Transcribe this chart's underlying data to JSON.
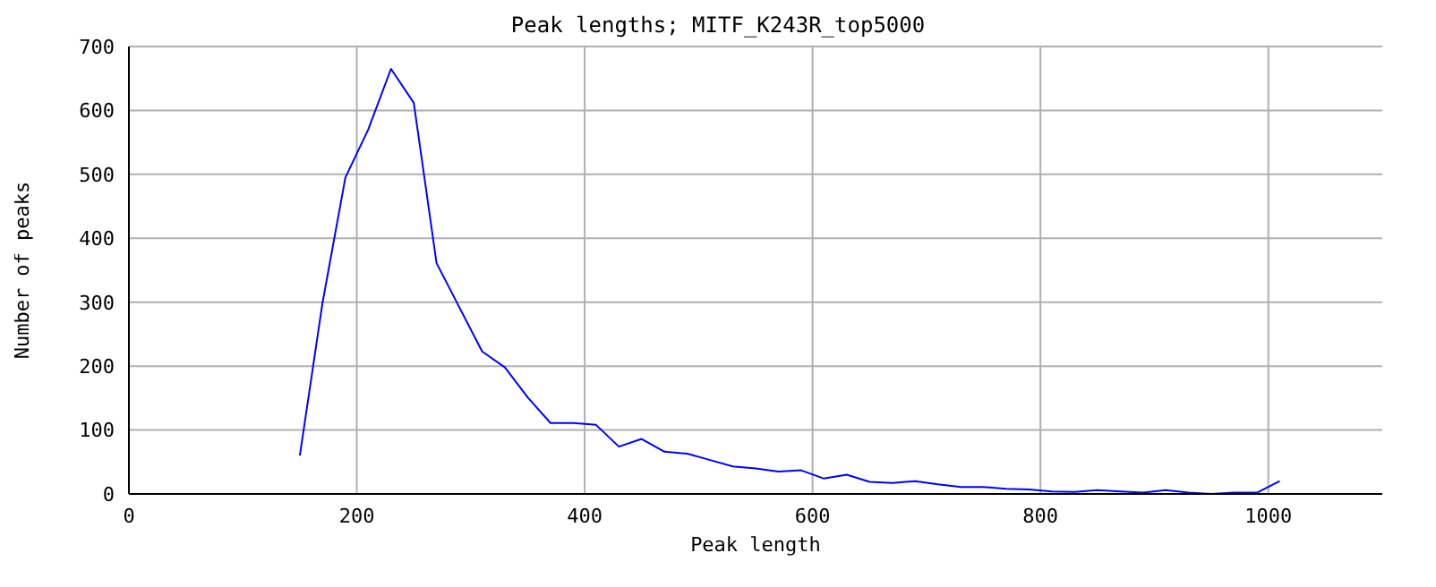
{
  "chart_data": {
    "type": "line",
    "title": "Peak lengths; MITF_K243R_top5000",
    "xlabel": "Peak length",
    "ylabel": "Number of peaks",
    "x": [
      150,
      170,
      190,
      210,
      230,
      250,
      270,
      310,
      330,
      350,
      370,
      390,
      410,
      430,
      450,
      470,
      490,
      510,
      530,
      550,
      570,
      590,
      610,
      630,
      650,
      670,
      690,
      710,
      730,
      750,
      770,
      790,
      810,
      830,
      850,
      870,
      890,
      910,
      930,
      950,
      970,
      990,
      1010
    ],
    "series": [
      {
        "color": "#0000ff",
        "values": [
          60,
          300,
          495,
          570,
          665,
          612,
          361,
          223,
          198,
          151,
          111,
          111,
          108,
          74,
          86,
          66,
          63,
          53,
          43,
          40,
          35,
          37,
          24,
          30,
          19,
          17,
          20,
          15,
          11,
          11,
          8,
          7,
          4,
          3,
          6,
          4,
          2,
          6,
          2,
          0,
          2,
          2,
          20
        ]
      }
    ],
    "xlim": [
      0,
      1100
    ],
    "xticks": [
      0,
      200,
      400,
      600,
      800,
      1000
    ],
    "ylim": [
      0,
      700
    ],
    "yticks": [
      0,
      100,
      200,
      300,
      400,
      500,
      600,
      700
    ],
    "grid": true,
    "marker": "none",
    "line_style": "solid"
  }
}
